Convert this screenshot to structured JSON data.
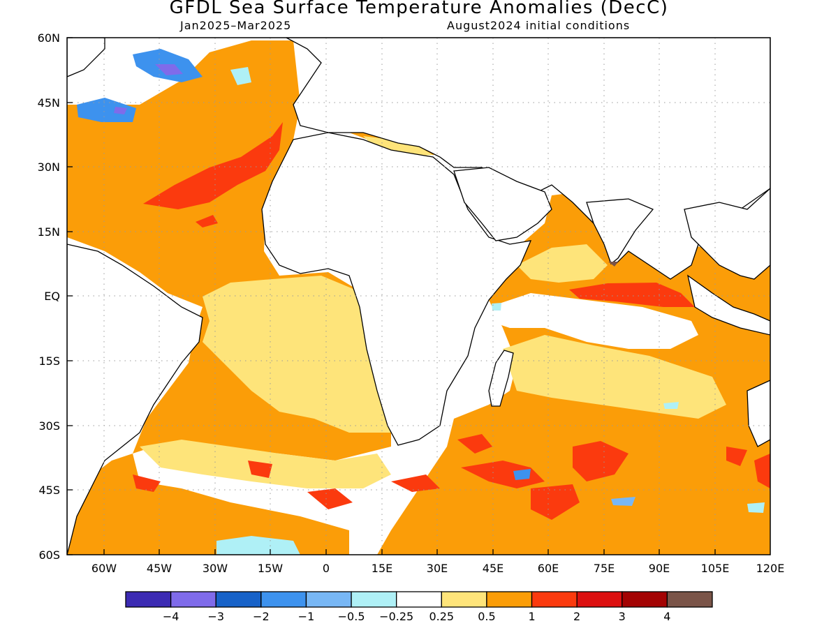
{
  "title": "GFDL Sea Surface Temperature Anomalies (DecC)",
  "subtitle_left": "Jan2025–Mar2025",
  "subtitle_right": "August2024 initial conditions",
  "axes": {
    "lat_labels": [
      "60N",
      "45N",
      "30N",
      "15N",
      "EQ",
      "15S",
      "30S",
      "45S",
      "60S"
    ],
    "lon_labels": [
      "60W",
      "45W",
      "30W",
      "15W",
      "0",
      "15E",
      "30E",
      "45E",
      "60E",
      "75E",
      "90E",
      "105E",
      "120E"
    ],
    "grid": "dotted"
  },
  "colorbar": {
    "colors": [
      "#3c2bb3",
      "#7f6bea",
      "#1762c8",
      "#3d92ee",
      "#78b7f5",
      "#aff0f6",
      "#ffffff",
      "#fee47a",
      "#fb9d08",
      "#fb3a0e",
      "#dc1010",
      "#a30303",
      "#7a5448"
    ],
    "labels": [
      "−4",
      "−3",
      "−2",
      "−1",
      "−0.5",
      "−0.25",
      "0.25",
      "0.5",
      "1",
      "2",
      "3",
      "4"
    ]
  },
  "legend_colors": {
    "warm_light": "#fee47a",
    "warm": "#fb9d08",
    "warm_strong": "#fb3a0e",
    "cool_light": "#aff0f6",
    "cool": "#3d92ee",
    "cool_strong": "#7f6bea"
  }
}
